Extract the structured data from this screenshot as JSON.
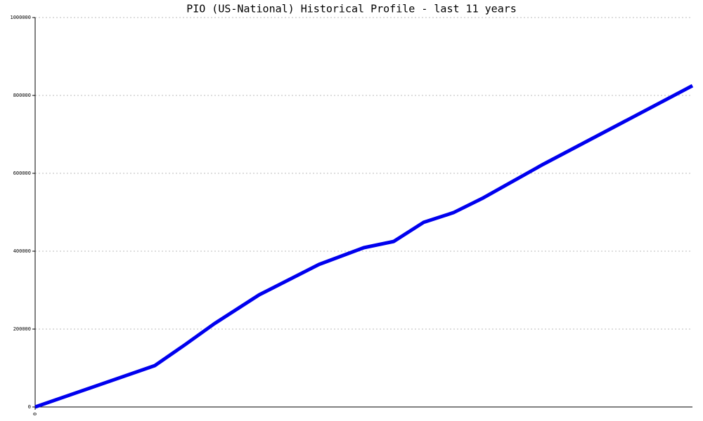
{
  "chart_data": {
    "type": "line",
    "title": "PIO (US-National) Historical Profile - last 11 years",
    "x": [
      0,
      4,
      5,
      6,
      7.5,
      9.5,
      11,
      12,
      13,
      14,
      15,
      16,
      17,
      22
    ],
    "series": [
      {
        "color": "#0000ee",
        "values": [
          0,
          106000,
          159000,
          214000,
          288000,
          366000,
          409000,
          425000,
          474000,
          499000,
          537000,
          580000,
          623000,
          825000
        ]
      }
    ],
    "xlim": [
      0,
      22
    ],
    "xticks": [
      0
    ],
    "ylim": [
      0,
      1000000
    ],
    "yticks": [
      0,
      200000,
      400000,
      600000,
      800000,
      1000000
    ],
    "grid": true
  }
}
